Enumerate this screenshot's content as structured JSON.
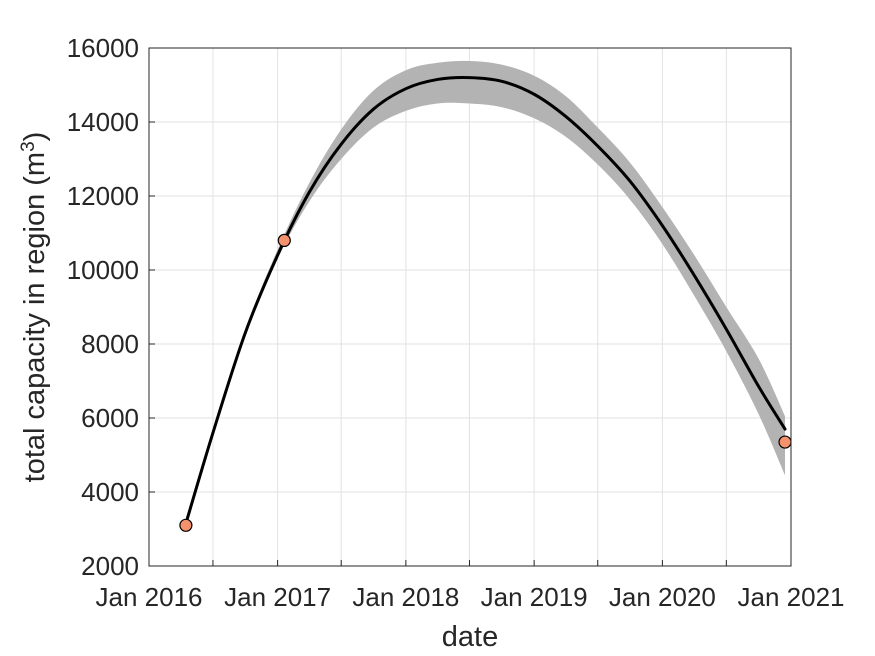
{
  "chart_data": {
    "type": "line",
    "title": "",
    "xlabel": "date",
    "ylabel": "total capacity in region (m",
    "ylabel_superscript": "3",
    "ylabel_suffix": ")",
    "x_is_date": true,
    "xlim": [
      "2016-01-01",
      "2021-01-01"
    ],
    "ylim": [
      2000,
      16000
    ],
    "grid": true,
    "x_ticks": [
      {
        "date": "2016-01-01",
        "label": "Jan 2016"
      },
      {
        "date": "2016-07-01",
        "label": ""
      },
      {
        "date": "2017-01-01",
        "label": "Jan 2017"
      },
      {
        "date": "2017-07-01",
        "label": ""
      },
      {
        "date": "2018-01-01",
        "label": "Jan 2018"
      },
      {
        "date": "2018-07-01",
        "label": ""
      },
      {
        "date": "2019-01-01",
        "label": "Jan 2019"
      },
      {
        "date": "2019-07-01",
        "label": ""
      },
      {
        "date": "2020-01-01",
        "label": "Jan 2020"
      },
      {
        "date": "2020-07-01",
        "label": ""
      },
      {
        "date": "2021-01-01",
        "label": "Jan 2021"
      }
    ],
    "y_ticks": [
      {
        "value": 2000,
        "label": "2000"
      },
      {
        "value": 4000,
        "label": "4000"
      },
      {
        "value": 6000,
        "label": "6000"
      },
      {
        "value": 8000,
        "label": "8000"
      },
      {
        "value": 10000,
        "label": "10000"
      },
      {
        "value": 12000,
        "label": "12000"
      },
      {
        "value": 14000,
        "label": "14000"
      },
      {
        "value": 16000,
        "label": "16000"
      }
    ],
    "series": [
      {
        "kind": "fit-line",
        "color": "#000000",
        "points": [
          {
            "x": "2016-04-15",
            "y": 3150
          },
          {
            "x": "2016-07-01",
            "y": 5600
          },
          {
            "x": "2016-10-01",
            "y": 8300
          },
          {
            "x": "2017-01-01",
            "y": 10400
          },
          {
            "x": "2017-04-01",
            "y": 12100
          },
          {
            "x": "2017-07-01",
            "y": 13400
          },
          {
            "x": "2017-10-01",
            "y": 14350
          },
          {
            "x": "2018-01-01",
            "y": 14900
          },
          {
            "x": "2018-04-01",
            "y": 15150
          },
          {
            "x": "2018-07-01",
            "y": 15200
          },
          {
            "x": "2018-10-01",
            "y": 15100
          },
          {
            "x": "2019-01-01",
            "y": 14750
          },
          {
            "x": "2019-04-01",
            "y": 14150
          },
          {
            "x": "2019-07-01",
            "y": 13350
          },
          {
            "x": "2019-10-01",
            "y": 12400
          },
          {
            "x": "2020-01-01",
            "y": 11200
          },
          {
            "x": "2020-04-01",
            "y": 9850
          },
          {
            "x": "2020-07-01",
            "y": 8400
          },
          {
            "x": "2020-10-01",
            "y": 6850
          },
          {
            "x": "2020-12-15",
            "y": 5700
          }
        ]
      },
      {
        "kind": "confidence-band",
        "color": "#b3b3b3",
        "points": [
          {
            "x": "2016-04-15",
            "lower": 3050,
            "upper": 3300
          },
          {
            "x": "2016-07-01",
            "lower": 5500,
            "upper": 5700
          },
          {
            "x": "2016-10-01",
            "lower": 8200,
            "upper": 8400
          },
          {
            "x": "2017-01-01",
            "lower": 10300,
            "upper": 10550
          },
          {
            "x": "2017-04-01",
            "lower": 11850,
            "upper": 12350
          },
          {
            "x": "2017-07-01",
            "lower": 13000,
            "upper": 13800
          },
          {
            "x": "2017-10-01",
            "lower": 13850,
            "upper": 14850
          },
          {
            "x": "2018-01-01",
            "lower": 14300,
            "upper": 15400
          },
          {
            "x": "2018-04-01",
            "lower": 14500,
            "upper": 15600
          },
          {
            "x": "2018-07-01",
            "lower": 14500,
            "upper": 15650
          },
          {
            "x": "2018-10-01",
            "lower": 14400,
            "upper": 15550
          },
          {
            "x": "2019-01-01",
            "lower": 14100,
            "upper": 15250
          },
          {
            "x": "2019-04-01",
            "lower": 13600,
            "upper": 14700
          },
          {
            "x": "2019-07-01",
            "lower": 12850,
            "upper": 13850
          },
          {
            "x": "2019-10-01",
            "lower": 11900,
            "upper": 12900
          },
          {
            "x": "2020-01-01",
            "lower": 10700,
            "upper": 11700
          },
          {
            "x": "2020-04-01",
            "lower": 9300,
            "upper": 10400
          },
          {
            "x": "2020-07-01",
            "lower": 7800,
            "upper": 9000
          },
          {
            "x": "2020-10-01",
            "lower": 6100,
            "upper": 7600
          },
          {
            "x": "2020-12-15",
            "lower": 4450,
            "upper": 6050
          }
        ]
      },
      {
        "kind": "observations",
        "color": "#f4926e",
        "edge_color": "#000000",
        "points": [
          {
            "x": "2016-04-15",
            "y": 3100
          },
          {
            "x": "2017-01-20",
            "y": 10800
          },
          {
            "x": "2020-12-15",
            "y": 5350
          }
        ]
      }
    ]
  }
}
